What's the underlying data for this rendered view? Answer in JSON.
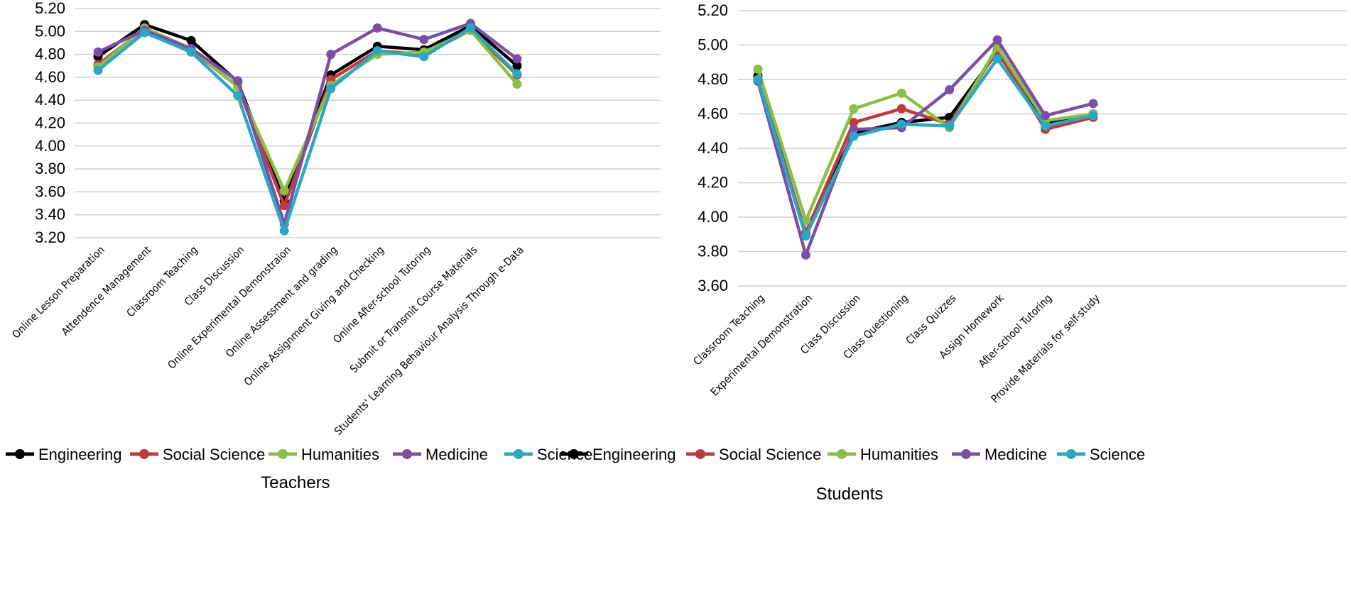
{
  "colors": {
    "Engineering": "#000000",
    "Social Science": "#c0393b",
    "Humanities": "#8cbe43",
    "Medicine": "#7b4fa3",
    "Science": "#2ba7c4"
  },
  "chart_data": [
    {
      "type": "line",
      "title": "Teachers",
      "xlabel": "",
      "ylabel": "",
      "ylim": [
        3.2,
        5.2
      ],
      "yticks": [
        "3.20",
        "3.40",
        "3.60",
        "3.80",
        "4.00",
        "4.20",
        "4.40",
        "4.60",
        "4.80",
        "5.00",
        "5.20"
      ],
      "grid": true,
      "legend_position": "bottom",
      "categories": [
        "Online Lesson Preparation",
        "Attendence Management",
        "Classroom Teaching",
        "Class Discussion",
        "Online Experimental Demonstraion",
        "Online Assessment and grading",
        "Online Assignment Giving and Checking",
        "Online After-school Tutoring",
        "Submit or Transmit Course Materials",
        "Students' Learning Behaviour Analysis Through e-Data"
      ],
      "series": [
        {
          "name": "Engineering",
          "values": [
            4.78,
            5.06,
            4.92,
            4.56,
            3.52,
            4.62,
            4.87,
            4.84,
            5.05,
            4.7
          ]
        },
        {
          "name": "Social Science",
          "values": [
            4.71,
            5.02,
            4.84,
            4.52,
            3.48,
            4.58,
            4.83,
            4.8,
            5.01,
            4.62
          ]
        },
        {
          "name": "Humanities",
          "values": [
            4.69,
            5.03,
            4.85,
            4.52,
            3.61,
            4.53,
            4.8,
            4.82,
            5.01,
            4.54
          ]
        },
        {
          "name": "Medicine",
          "values": [
            4.82,
            5.01,
            4.85,
            4.57,
            3.32,
            4.8,
            5.03,
            4.93,
            5.07,
            4.76
          ]
        },
        {
          "name": "Science",
          "values": [
            4.66,
            4.99,
            4.82,
            4.44,
            3.26,
            4.5,
            4.83,
            4.78,
            5.03,
            4.63
          ]
        }
      ]
    },
    {
      "type": "line",
      "title": "Students",
      "xlabel": "",
      "ylabel": "",
      "ylim": [
        3.6,
        5.2
      ],
      "yticks": [
        "3.60",
        "3.80",
        "4.00",
        "4.20",
        "4.40",
        "4.60",
        "4.80",
        "5.00",
        "5.20"
      ],
      "grid": true,
      "legend_position": "bottom",
      "categories": [
        "Classroom Teaching",
        "Experimental Demonstration",
        "Class Discussion",
        "Class Questioning",
        "Class Quizzes",
        "Assign Homework",
        "After-school Tutoring",
        "Provide Materials for self-study"
      ],
      "series": [
        {
          "name": "Engineering",
          "values": [
            4.82,
            3.9,
            4.49,
            4.55,
            4.58,
            4.96,
            4.55,
            4.6
          ]
        },
        {
          "name": "Social Science",
          "values": [
            4.8,
            3.91,
            4.55,
            4.63,
            4.54,
            4.97,
            4.51,
            4.58
          ]
        },
        {
          "name": "Humanities",
          "values": [
            4.86,
            3.98,
            4.63,
            4.72,
            4.52,
            4.99,
            4.56,
            4.6
          ]
        },
        {
          "name": "Medicine",
          "values": [
            4.79,
            3.78,
            4.51,
            4.52,
            4.74,
            5.03,
            4.59,
            4.66
          ]
        },
        {
          "name": "Science",
          "values": [
            4.8,
            3.89,
            4.47,
            4.54,
            4.53,
            4.92,
            4.53,
            4.59
          ]
        }
      ]
    }
  ]
}
